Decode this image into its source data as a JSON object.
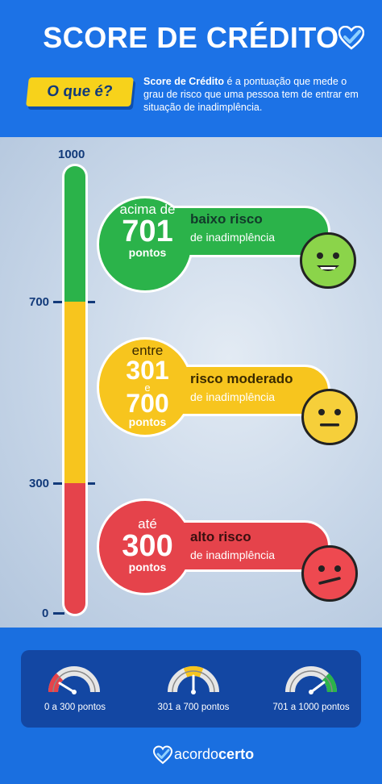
{
  "header": {
    "title": "SCORE DE CRÉDITO",
    "what_tag": "O que é?",
    "definition_bold": "Score de Crédito",
    "definition_rest": " é a pontuação que mede o grau de risco que uma pessoa tem de entrar em situação de inadimplência."
  },
  "scale": {
    "labels": [
      "1000",
      "700",
      "300",
      "0"
    ]
  },
  "cards": [
    {
      "top": "acima de",
      "number": "701",
      "bottom": "pontos",
      "risk_title": "baixo risco",
      "risk_sub": "de inadimplência",
      "face": "happy-face-icon",
      "color": "#2bb34a"
    },
    {
      "top": "entre",
      "number": "301",
      "middle": "e",
      "number2": "700",
      "bottom": "pontos",
      "risk_title": "risco moderado",
      "risk_sub": "de inadimplência",
      "face": "neutral-face-icon",
      "color": "#f7c51e"
    },
    {
      "top": "até",
      "number": "300",
      "bottom": "pontos",
      "risk_title": "alto risco",
      "risk_sub": "de inadimplência",
      "face": "sad-face-icon",
      "color": "#e5434b"
    }
  ],
  "legend": [
    {
      "label": "0 a 300 pontos",
      "icon": "gauge-low-icon"
    },
    {
      "label": "301 a 700 pontos",
      "icon": "gauge-medium-icon"
    },
    {
      "label": "701 a 1000 pontos",
      "icon": "gauge-high-icon"
    }
  ],
  "brand": {
    "part1": "acordo",
    "part2": "certo"
  }
}
